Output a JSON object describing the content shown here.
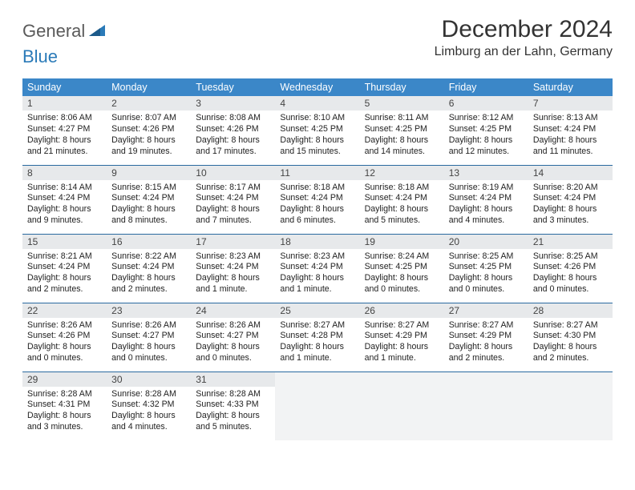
{
  "logo": {
    "part1": "General",
    "part2": "Blue"
  },
  "title": "December 2024",
  "location": "Limburg an der Lahn, Germany",
  "colors": {
    "header_bg": "#3b87c8",
    "header_text": "#ffffff",
    "daynum_bg": "#e7e9eb",
    "border": "#2a6aa0",
    "logo_gray": "#5a5a5a",
    "logo_blue": "#2a7ab8"
  },
  "weekdays": [
    "Sunday",
    "Monday",
    "Tuesday",
    "Wednesday",
    "Thursday",
    "Friday",
    "Saturday"
  ],
  "weeks": [
    [
      {
        "n": "1",
        "sr": "8:06 AM",
        "ss": "4:27 PM",
        "dl": "8 hours and 21 minutes."
      },
      {
        "n": "2",
        "sr": "8:07 AM",
        "ss": "4:26 PM",
        "dl": "8 hours and 19 minutes."
      },
      {
        "n": "3",
        "sr": "8:08 AM",
        "ss": "4:26 PM",
        "dl": "8 hours and 17 minutes."
      },
      {
        "n": "4",
        "sr": "8:10 AM",
        "ss": "4:25 PM",
        "dl": "8 hours and 15 minutes."
      },
      {
        "n": "5",
        "sr": "8:11 AM",
        "ss": "4:25 PM",
        "dl": "8 hours and 14 minutes."
      },
      {
        "n": "6",
        "sr": "8:12 AM",
        "ss": "4:25 PM",
        "dl": "8 hours and 12 minutes."
      },
      {
        "n": "7",
        "sr": "8:13 AM",
        "ss": "4:24 PM",
        "dl": "8 hours and 11 minutes."
      }
    ],
    [
      {
        "n": "8",
        "sr": "8:14 AM",
        "ss": "4:24 PM",
        "dl": "8 hours and 9 minutes."
      },
      {
        "n": "9",
        "sr": "8:15 AM",
        "ss": "4:24 PM",
        "dl": "8 hours and 8 minutes."
      },
      {
        "n": "10",
        "sr": "8:17 AM",
        "ss": "4:24 PM",
        "dl": "8 hours and 7 minutes."
      },
      {
        "n": "11",
        "sr": "8:18 AM",
        "ss": "4:24 PM",
        "dl": "8 hours and 6 minutes."
      },
      {
        "n": "12",
        "sr": "8:18 AM",
        "ss": "4:24 PM",
        "dl": "8 hours and 5 minutes."
      },
      {
        "n": "13",
        "sr": "8:19 AM",
        "ss": "4:24 PM",
        "dl": "8 hours and 4 minutes."
      },
      {
        "n": "14",
        "sr": "8:20 AM",
        "ss": "4:24 PM",
        "dl": "8 hours and 3 minutes."
      }
    ],
    [
      {
        "n": "15",
        "sr": "8:21 AM",
        "ss": "4:24 PM",
        "dl": "8 hours and 2 minutes."
      },
      {
        "n": "16",
        "sr": "8:22 AM",
        "ss": "4:24 PM",
        "dl": "8 hours and 2 minutes."
      },
      {
        "n": "17",
        "sr": "8:23 AM",
        "ss": "4:24 PM",
        "dl": "8 hours and 1 minute."
      },
      {
        "n": "18",
        "sr": "8:23 AM",
        "ss": "4:24 PM",
        "dl": "8 hours and 1 minute."
      },
      {
        "n": "19",
        "sr": "8:24 AM",
        "ss": "4:25 PM",
        "dl": "8 hours and 0 minutes."
      },
      {
        "n": "20",
        "sr": "8:25 AM",
        "ss": "4:25 PM",
        "dl": "8 hours and 0 minutes."
      },
      {
        "n": "21",
        "sr": "8:25 AM",
        "ss": "4:26 PM",
        "dl": "8 hours and 0 minutes."
      }
    ],
    [
      {
        "n": "22",
        "sr": "8:26 AM",
        "ss": "4:26 PM",
        "dl": "8 hours and 0 minutes."
      },
      {
        "n": "23",
        "sr": "8:26 AM",
        "ss": "4:27 PM",
        "dl": "8 hours and 0 minutes."
      },
      {
        "n": "24",
        "sr": "8:26 AM",
        "ss": "4:27 PM",
        "dl": "8 hours and 0 minutes."
      },
      {
        "n": "25",
        "sr": "8:27 AM",
        "ss": "4:28 PM",
        "dl": "8 hours and 1 minute."
      },
      {
        "n": "26",
        "sr": "8:27 AM",
        "ss": "4:29 PM",
        "dl": "8 hours and 1 minute."
      },
      {
        "n": "27",
        "sr": "8:27 AM",
        "ss": "4:29 PM",
        "dl": "8 hours and 2 minutes."
      },
      {
        "n": "28",
        "sr": "8:27 AM",
        "ss": "4:30 PM",
        "dl": "8 hours and 2 minutes."
      }
    ],
    [
      {
        "n": "29",
        "sr": "8:28 AM",
        "ss": "4:31 PM",
        "dl": "8 hours and 3 minutes."
      },
      {
        "n": "30",
        "sr": "8:28 AM",
        "ss": "4:32 PM",
        "dl": "8 hours and 4 minutes."
      },
      {
        "n": "31",
        "sr": "8:28 AM",
        "ss": "4:33 PM",
        "dl": "8 hours and 5 minutes."
      },
      null,
      null,
      null,
      null
    ]
  ],
  "labels": {
    "sunrise": "Sunrise: ",
    "sunset": "Sunset: ",
    "daylight": "Daylight: "
  }
}
